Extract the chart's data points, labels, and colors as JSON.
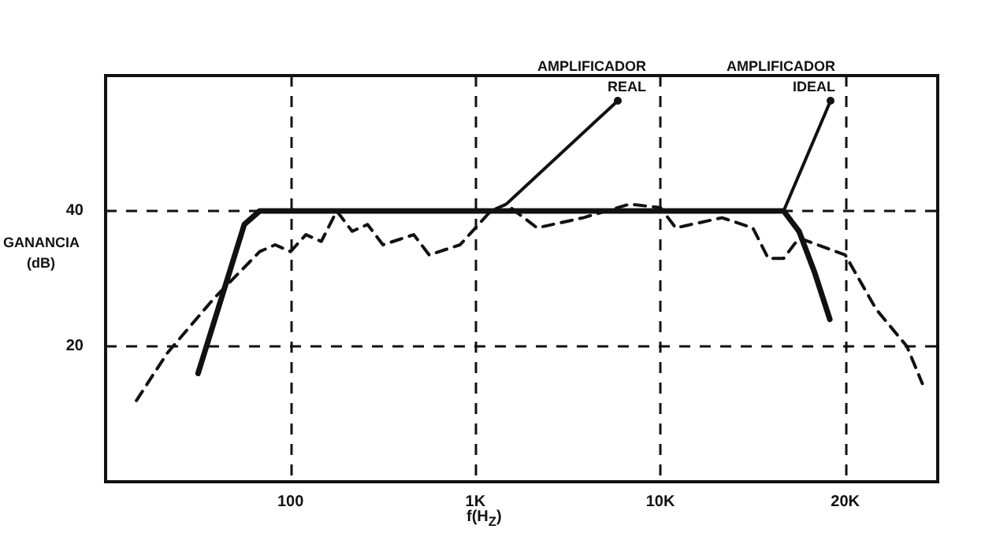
{
  "chart_data": {
    "type": "line",
    "xlabel": "f(H$_{Z}$)",
    "ylabel": "GANANCIA (dB)",
    "categories": [
      null,
      null,
      null,
      null,
      null,
      null,
      null,
      null,
      null,
      null,
      null,
      null,
      "100",
      null,
      null,
      null,
      null,
      null,
      null,
      null,
      null,
      null,
      null,
      null,
      "1K",
      null,
      null,
      null,
      null,
      null,
      null,
      null,
      null,
      null,
      null,
      null,
      "10K",
      null,
      null,
      null,
      null,
      null,
      null,
      null,
      null,
      null,
      null,
      null,
      "20K",
      null,
      null,
      null,
      null,
      null,
      null
    ],
    "series": [
      {
        "name": "AMPLIFICADOR REAL",
        "color": "#111111",
        "line_style": "dashed",
        "values": [
          null,
          null,
          12,
          null,
          19,
          null,
          null,
          27,
          null,
          null,
          34,
          35,
          34,
          36.5,
          35.5,
          40,
          37,
          38,
          35,
          null,
          36.5,
          33.5,
          null,
          35,
          null,
          40,
          41,
          null,
          37.5,
          null,
          null,
          39,
          null,
          null,
          41,
          null,
          40.5,
          37.5,
          null,
          null,
          39,
          null,
          37.5,
          33,
          33,
          36,
          null,
          null,
          33.5,
          null,
          25.5,
          null,
          20,
          14.5,
          null
        ]
      },
      {
        "name": "AMPLIFICADOR IDEAL",
        "color": "#111111",
        "line_style": "solid",
        "values": [
          null,
          null,
          null,
          null,
          null,
          null,
          16,
          null,
          null,
          38,
          40,
          null,
          null,
          null,
          null,
          null,
          null,
          null,
          null,
          null,
          null,
          null,
          null,
          null,
          null,
          null,
          null,
          null,
          null,
          null,
          null,
          null,
          null,
          null,
          null,
          null,
          null,
          null,
          null,
          null,
          null,
          null,
          null,
          null,
          40,
          37,
          31,
          24,
          null,
          null,
          null,
          null,
          null,
          null,
          null
        ]
      }
    ],
    "ylim": [
      0,
      60
    ],
    "yticks": [
      20,
      40
    ],
    "grid": true,
    "legend": false,
    "marker": "none"
  }
}
